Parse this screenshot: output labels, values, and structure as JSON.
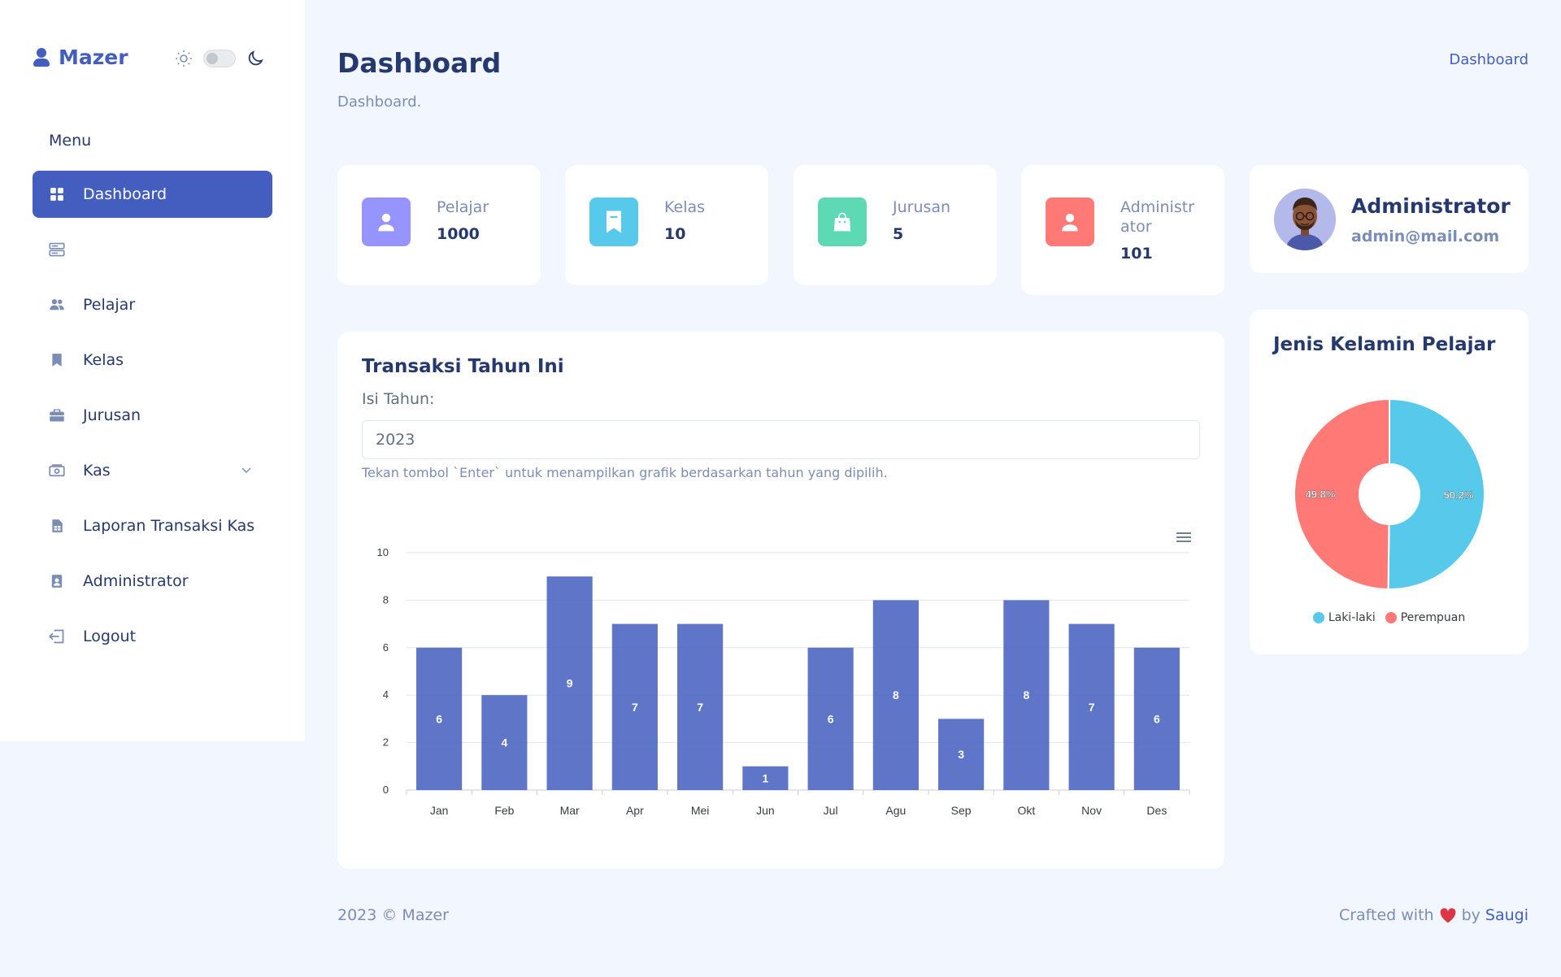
{
  "sidebar": {
    "brand": "Mazer",
    "menu_title": "Menu",
    "items": [
      {
        "label": "Dashboard",
        "icon": "grid-icon"
      },
      {
        "label": "",
        "icon": "server-icon"
      },
      {
        "label": "Pelajar",
        "icon": "people-icon"
      },
      {
        "label": "Kelas",
        "icon": "bookmark-icon"
      },
      {
        "label": "Jurusan",
        "icon": "briefcase-icon"
      },
      {
        "label": "Kas",
        "icon": "cash-icon"
      },
      {
        "label": "Laporan Transaksi Kas",
        "icon": "file-spreadsheet-icon"
      },
      {
        "label": "Administrator",
        "icon": "person-badge-icon"
      },
      {
        "label": "Logout",
        "icon": "box-arrow-left-icon"
      }
    ]
  },
  "header": {
    "title": "Dashboard",
    "subtitle": "Dashboard.",
    "breadcrumb": "Dashboard"
  },
  "stats": [
    {
      "label": "Pelajar",
      "value": "1000",
      "color": "#9694ff",
      "icon": "person-icon"
    },
    {
      "label": "Kelas",
      "value": "10",
      "color": "#57caeb",
      "icon": "bookmark-icon"
    },
    {
      "label": "Jurusan",
      "value": "5",
      "color": "#5ddab4",
      "icon": "bag-icon"
    },
    {
      "label": "Administrator",
      "value": "101",
      "color": "#ff7976",
      "icon": "person-icon"
    }
  ],
  "profile": {
    "name": "Administrator",
    "email": "admin@mail.com"
  },
  "transactions": {
    "title": "Transaksi Tahun Ini",
    "year_label": "Isi Tahun:",
    "year_value": "2023",
    "help": "Tekan tombol `Enter` untuk menampilkan grafik berdasarkan tahun yang dipilih."
  },
  "gender": {
    "title": "Jenis Kelamin Pelajar"
  },
  "chart_data": [
    {
      "type": "bar",
      "categories": [
        "Jan",
        "Feb",
        "Mar",
        "Apr",
        "Mei",
        "Jun",
        "Jul",
        "Agu",
        "Sep",
        "Okt",
        "Nov",
        "Des"
      ],
      "values": [
        6,
        4,
        9,
        7,
        7,
        1,
        6,
        8,
        3,
        8,
        7,
        6
      ],
      "ylim": [
        0,
        10
      ],
      "yticks": [
        0,
        2,
        4,
        6,
        8,
        10
      ],
      "color": "#435ebe",
      "data_labels": true,
      "grid": true
    },
    {
      "type": "pie",
      "donut": true,
      "labels": [
        "Laki-laki",
        "Perempuan"
      ],
      "values": [
        50.2,
        49.8
      ],
      "value_labels": [
        "50.2%",
        "49.8%"
      ],
      "colors": [
        "#57caeb",
        "#ff7976"
      ],
      "legend": "bottom"
    }
  ],
  "footer": {
    "copyright": "2023 © Mazer",
    "crafted": "Crafted with",
    "by": "by",
    "author": "Saugi"
  }
}
